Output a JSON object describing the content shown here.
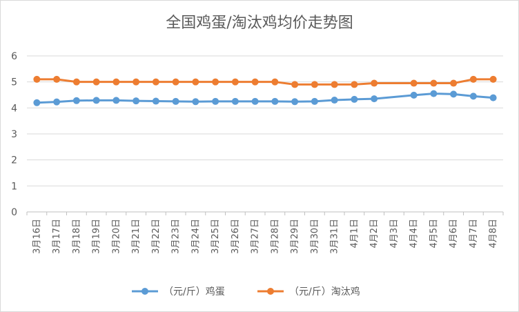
{
  "chart_data": {
    "type": "line",
    "title": "全国鸡蛋/淘汰鸡均价走势图",
    "xlabel": "",
    "ylabel": "",
    "ylim": [
      0,
      6
    ],
    "yticks": [
      "0",
      "1",
      "2",
      "3",
      "4",
      "5",
      "6"
    ],
    "grid": true,
    "legend_position": "bottom",
    "categories": [
      "3月16日",
      "3月17日",
      "3月18日",
      "3月19日",
      "3月20日",
      "3月21日",
      "3月22日",
      "3月23日",
      "3月24日",
      "3月25日",
      "3月26日",
      "3月27日",
      "3月28日",
      "3月29日",
      "3月30日",
      "3月31日",
      "4月1日",
      "4月2日",
      "4月3日",
      "4月4日",
      "4月5日",
      "4月6日",
      "4月7日",
      "4月8日"
    ],
    "series": [
      {
        "name": "（元/斤）鸡蛋",
        "color": "#5b9bd5",
        "values": [
          4.2,
          4.23,
          4.28,
          4.29,
          4.29,
          4.27,
          4.26,
          4.25,
          4.24,
          4.25,
          4.25,
          4.25,
          4.25,
          4.24,
          4.25,
          4.3,
          4.33,
          4.35,
          null,
          4.49,
          4.55,
          4.53,
          4.45,
          4.39
        ]
      },
      {
        "name": "（元/斤）淘汰鸡",
        "color": "#ed7d31",
        "values": [
          5.1,
          5.1,
          5.0,
          5.0,
          5.0,
          5.0,
          5.0,
          5.0,
          5.0,
          5.0,
          5.0,
          5.0,
          5.0,
          4.9,
          4.9,
          4.9,
          4.9,
          4.95,
          null,
          4.95,
          4.95,
          4.95,
          5.1,
          5.1
        ]
      }
    ]
  }
}
